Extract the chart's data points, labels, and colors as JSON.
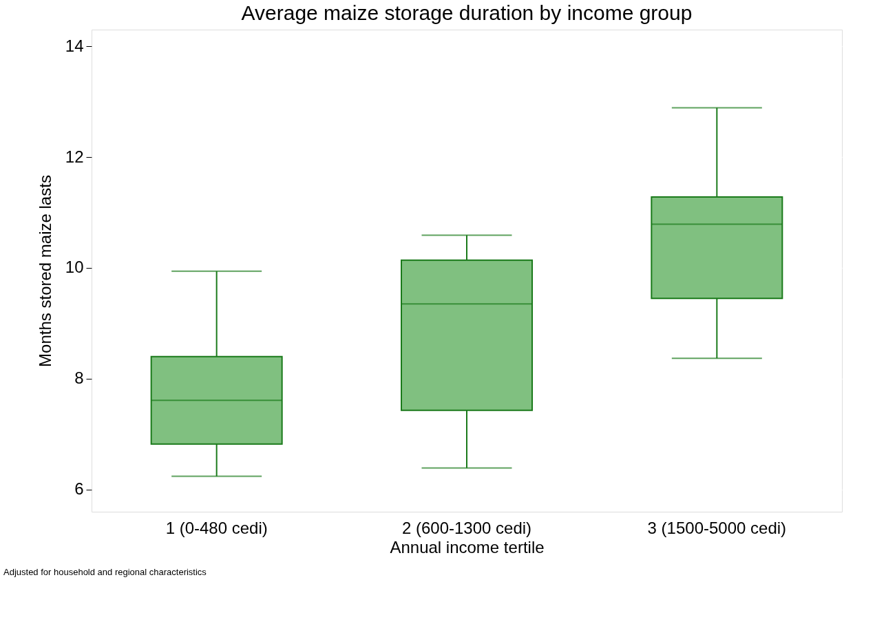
{
  "chart_data": {
    "type": "box",
    "title": "Average maize storage duration by income group",
    "xlabel": "Annual income tertile",
    "ylabel": "Months stored maize lasts",
    "categories": [
      "1 (0-480 cedi)",
      "2 (600-1300 cedi)",
      "3 (1500-5000 cedi)"
    ],
    "color": "#80c080",
    "boxes": [
      {
        "low": 6.24,
        "q1": 6.82,
        "median": 7.61,
        "q3": 8.4,
        "high": 9.94
      },
      {
        "low": 6.39,
        "q1": 7.43,
        "median": 9.35,
        "q3": 10.14,
        "high": 10.59
      },
      {
        "low": 8.37,
        "q1": 9.45,
        "median": 10.79,
        "q3": 11.28,
        "high": 12.89
      }
    ],
    "ylim": [
      5.6,
      14.3
    ],
    "yticks": [
      6,
      8,
      10,
      12,
      14
    ],
    "grid": "y",
    "annotations": [
      "Adjusted for household and regional characteristics"
    ]
  }
}
